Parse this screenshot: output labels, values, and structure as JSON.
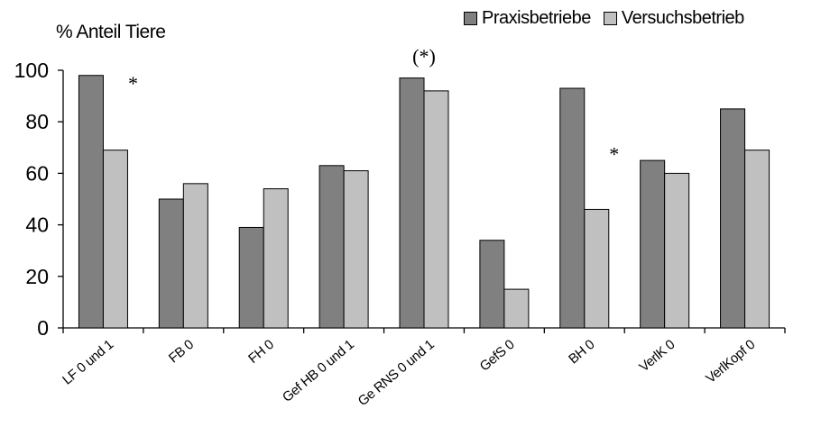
{
  "chart_data": {
    "type": "bar",
    "ylabel": "% Anteil Tiere",
    "xlabel": "",
    "ylim": [
      0,
      100
    ],
    "yticks": [
      0,
      20,
      40,
      60,
      80,
      100
    ],
    "grid": false,
    "legend_position": "top-right",
    "categories": [
      "LF 0 und 1",
      "FB 0",
      "FH 0",
      "Gef HB 0 und 1",
      "Ge RNS 0 und 1",
      "GefS 0",
      "BH 0",
      "VerlK 0",
      "VerlKopf 0"
    ],
    "series": [
      {
        "name": "Praxisbetriebe",
        "color": "#808080",
        "values": [
          98,
          50,
          39,
          63,
          97,
          34,
          93,
          65,
          85
        ]
      },
      {
        "name": "Versuchsbetrieb",
        "color": "#c0c0c0",
        "values": [
          69,
          56,
          54,
          61,
          92,
          15,
          46,
          60,
          69
        ]
      }
    ],
    "annotations": [
      {
        "text": "*",
        "category_index": 0,
        "near": "series-2"
      },
      {
        "text": "(*)",
        "category_index": 4,
        "near": "above"
      },
      {
        "text": "*",
        "category_index": 6,
        "near": "series-2"
      }
    ]
  }
}
